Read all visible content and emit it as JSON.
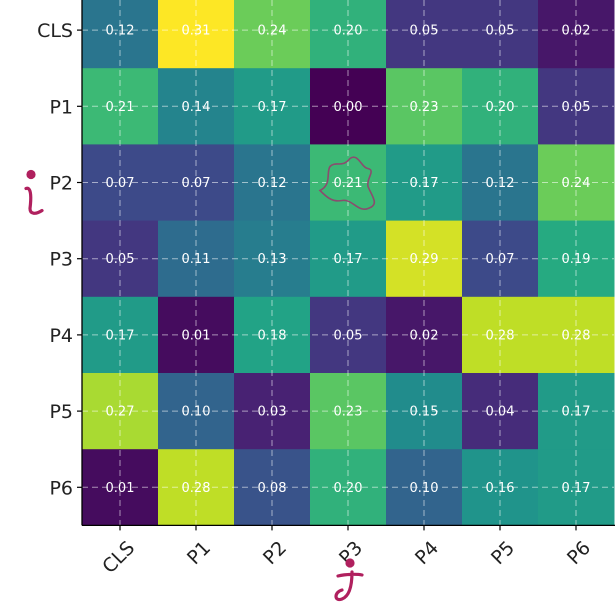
{
  "chart_data": {
    "type": "heatmap",
    "title": "",
    "xlabel": "",
    "ylabel": "",
    "x_categories": [
      "CLS",
      "P1",
      "P2",
      "P3",
      "P4",
      "P5",
      "P6"
    ],
    "y_categories": [
      "CLS",
      "P1",
      "P2",
      "P3",
      "P4",
      "P5",
      "P6"
    ],
    "values": [
      [
        0.12,
        0.31,
        0.24,
        0.2,
        0.05,
        0.05,
        0.02
      ],
      [
        0.21,
        0.14,
        0.17,
        0.0,
        0.23,
        0.2,
        0.05
      ],
      [
        0.07,
        0.07,
        0.12,
        0.21,
        0.17,
        0.12,
        0.24
      ],
      [
        0.05,
        0.11,
        0.13,
        0.17,
        0.29,
        0.07,
        0.19
      ],
      [
        0.17,
        0.01,
        0.18,
        0.05,
        0.02,
        0.28,
        0.28
      ],
      [
        0.27,
        0.1,
        0.03,
        0.23,
        0.15,
        0.04,
        0.17
      ],
      [
        0.01,
        0.28,
        0.08,
        0.2,
        0.1,
        0.16,
        0.17
      ]
    ],
    "value_range": [
      0.0,
      0.31
    ],
    "colormap": "viridis",
    "grid": true,
    "highlighted_cell": {
      "row": "P2",
      "col": "P3"
    },
    "handwritten_annotations": {
      "row_axis": "i",
      "col_axis": "j",
      "color": "#b0205e"
    }
  }
}
